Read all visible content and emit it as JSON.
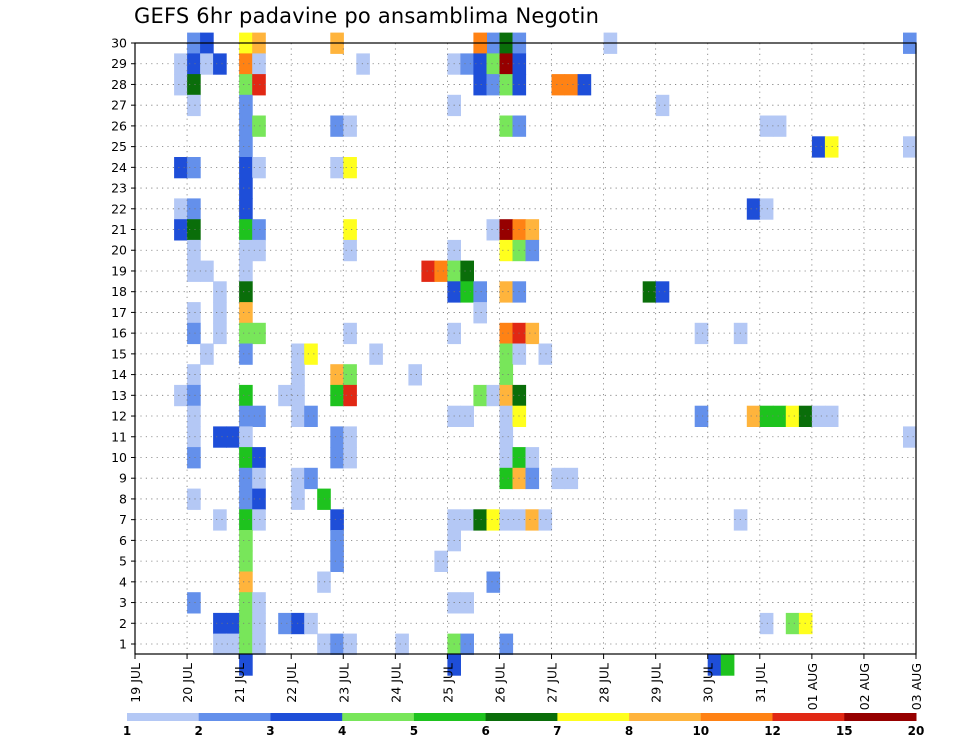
{
  "chart_data": {
    "type": "heatmap",
    "title": "GEFS 6hr padavine po ansamblima Negotin",
    "xlabel": "",
    "ylabel": "",
    "x_ticks": [
      "19 JUL",
      "20 JUL",
      "21 JUL",
      "22 JUL",
      "23 JUL",
      "24 JUL",
      "25 JUL",
      "26 JUL",
      "27 JUL",
      "28 JUL",
      "29 JUL",
      "30 JUL",
      "31 JUL",
      "01 AUG",
      "02 AUG",
      "03 AUG"
    ],
    "y_ticks": [
      1,
      2,
      3,
      4,
      5,
      6,
      7,
      8,
      9,
      10,
      11,
      12,
      13,
      14,
      15,
      16,
      17,
      18,
      19,
      20,
      21,
      22,
      23,
      24,
      25,
      26,
      27,
      28,
      29,
      30
    ],
    "xlim_days": [
      0,
      15
    ],
    "ylim": [
      0,
      30
    ],
    "grid": true,
    "legend": {
      "position": "bottom",
      "labels": [
        "1",
        "2",
        "3",
        "4",
        "5",
        "6",
        "7",
        "8",
        "10",
        "12",
        "15",
        "20"
      ],
      "colors": [
        "#b4c8f5",
        "#6490eb",
        "#1e4ed8",
        "#78e65a",
        "#1ec31e",
        "#0a6e0a",
        "#ffff1e",
        "#ffb43c",
        "#ff8214",
        "#e12814",
        "#960000"
      ]
    },
    "cells": [
      {
        "m": 30,
        "x": [
          1.0,
          2.0
        ],
        "c": [
          1,
          6
        ]
      },
      {
        "m": 30,
        "x": [
          1.25,
          2.25,
          3.75,
          6.75,
          7.0,
          7.25,
          9.0,
          14.75
        ],
        "c": [
          2,
          7,
          7,
          1,
          5,
          1,
          0,
          1
        ]
      },
      {
        "m": 30,
        "x": [
          6.5
        ],
        "c": [
          8
        ]
      },
      {
        "m": 29,
        "x": [
          0.75,
          1.0,
          1.25,
          1.5,
          2.0,
          2.25,
          4.25,
          6.0,
          6.25,
          6.5,
          6.75,
          7.0,
          7.25
        ],
        "c": [
          0,
          2,
          0,
          2,
          8,
          0,
          0,
          0,
          1,
          2,
          3,
          10,
          2
        ]
      },
      {
        "m": 28,
        "x": [
          0.75,
          1.0,
          2.0,
          2.25,
          6.5,
          6.75,
          7.0,
          7.25,
          8.0,
          8.25,
          8.5
        ],
        "c": [
          0,
          5,
          3,
          9,
          2,
          1,
          3,
          2,
          8,
          8,
          2
        ]
      },
      {
        "m": 27,
        "x": [
          1.0,
          2.0,
          6.0,
          10.0
        ],
        "c": [
          0,
          1,
          0,
          0
        ]
      },
      {
        "m": 26,
        "x": [
          2.0,
          2.25,
          3.75,
          4.0,
          7.0,
          7.25,
          12.0,
          12.25
        ],
        "c": [
          1,
          3,
          1,
          0,
          3,
          1,
          0,
          0
        ]
      },
      {
        "m": 25,
        "x": [
          2.0,
          13.0,
          13.25,
          14.75
        ],
        "c": [
          1,
          2,
          6,
          0
        ]
      },
      {
        "m": 24,
        "x": [
          0.75,
          1.0,
          2.0,
          2.25,
          3.75,
          4.0
        ],
        "c": [
          2,
          1,
          2,
          0,
          0,
          6
        ]
      },
      {
        "m": 23,
        "x": [
          2.0
        ],
        "c": [
          2
        ]
      },
      {
        "m": 22,
        "x": [
          0.75,
          1.0,
          2.0,
          11.75,
          12.0
        ],
        "c": [
          0,
          1,
          2,
          2,
          0
        ]
      },
      {
        "m": 21,
        "x": [
          0.75,
          1.0,
          2.0,
          2.25,
          4.0,
          6.75,
          7.0,
          7.25,
          7.5
        ],
        "c": [
          2,
          5,
          4,
          1,
          6,
          0,
          10,
          8,
          7
        ]
      },
      {
        "m": 20,
        "x": [
          1.0,
          2.0,
          2.25,
          4.0,
          6.0,
          7.0,
          7.25,
          7.5
        ],
        "c": [
          0,
          0,
          0,
          0,
          0,
          6,
          3,
          1
        ]
      },
      {
        "m": 19,
        "x": [
          1.0,
          1.25,
          2.0,
          5.5,
          5.75,
          6.0,
          6.25
        ],
        "c": [
          0,
          0,
          0,
          9,
          8,
          3,
          5
        ]
      },
      {
        "m": 18,
        "x": [
          1.5,
          2.0,
          6.0,
          6.25,
          6.5,
          7.0,
          7.25,
          9.75,
          10.0
        ],
        "c": [
          0,
          5,
          2,
          4,
          1,
          7,
          1,
          5,
          2
        ]
      },
      {
        "m": 17,
        "x": [
          1.0,
          1.5,
          2.0,
          6.5
        ],
        "c": [
          0,
          0,
          7,
          0
        ]
      },
      {
        "m": 16,
        "x": [
          1.0,
          1.5,
          2.0,
          2.25,
          4.0,
          6.0,
          7.0,
          7.25,
          7.5,
          10.75,
          11.5
        ],
        "c": [
          1,
          0,
          3,
          3,
          0,
          0,
          8,
          9,
          7,
          0,
          0
        ]
      },
      {
        "m": 15,
        "x": [
          1.25,
          2.0,
          3.0,
          3.25,
          4.5,
          7.0,
          7.25,
          7.75
        ],
        "c": [
          0,
          1,
          0,
          6,
          0,
          3,
          0,
          0
        ]
      },
      {
        "m": 14,
        "x": [
          1.0,
          3.0,
          3.75,
          4.0,
          5.25,
          7.0
        ],
        "c": [
          0,
          0,
          7,
          3,
          0,
          3
        ]
      },
      {
        "m": 13,
        "x": [
          0.75,
          1.0,
          2.0,
          2.75,
          3.0,
          3.75,
          4.0,
          6.5,
          6.75,
          7.0,
          7.25
        ],
        "c": [
          0,
          1,
          4,
          0,
          0,
          4,
          9,
          3,
          0,
          7,
          5
        ]
      },
      {
        "m": 12,
        "x": [
          1.0,
          2.0,
          2.25,
          3.0,
          3.25,
          6.0,
          6.25,
          7.0,
          7.25,
          10.75,
          11.75,
          12.0,
          12.25,
          12.5,
          12.75,
          13.0,
          13.25
        ],
        "c": [
          0,
          1,
          1,
          0,
          1,
          0,
          0,
          0,
          6,
          1,
          7,
          4,
          4,
          6,
          5,
          0,
          0
        ]
      },
      {
        "m": 11,
        "x": [
          1.0,
          1.5,
          1.75,
          2.0,
          3.75,
          4.0,
          7.0,
          14.75
        ],
        "c": [
          0,
          2,
          2,
          0,
          1,
          0,
          0,
          0
        ]
      },
      {
        "m": 10,
        "x": [
          1.0,
          2.0,
          2.25,
          3.75,
          4.0,
          7.0,
          7.25,
          7.5
        ],
        "c": [
          1,
          4,
          2,
          1,
          0,
          0,
          4,
          0
        ]
      },
      {
        "m": 9,
        "x": [
          2.0,
          2.25,
          3.0,
          3.25,
          7.0,
          7.25,
          7.5,
          8.0,
          8.25
        ],
        "c": [
          1,
          0,
          0,
          1,
          4,
          7,
          1,
          0,
          0
        ]
      },
      {
        "m": 8,
        "x": [
          1.0,
          2.0,
          2.25,
          3.0,
          3.5
        ],
        "c": [
          0,
          1,
          2,
          0,
          4
        ]
      },
      {
        "m": 7,
        "x": [
          1.5,
          2.0,
          2.25,
          3.75,
          6.0,
          6.25,
          6.5,
          6.75,
          7.0,
          7.25,
          7.5,
          7.75,
          11.5
        ],
        "c": [
          0,
          4,
          0,
          2,
          0,
          0,
          5,
          6,
          0,
          0,
          7,
          0,
          0
        ]
      },
      {
        "m": 6,
        "x": [
          2.0,
          3.75,
          6.0
        ],
        "c": [
          3,
          1,
          0
        ]
      },
      {
        "m": 5,
        "x": [
          2.0,
          3.75,
          5.75
        ],
        "c": [
          3,
          1,
          0
        ]
      },
      {
        "m": 4,
        "x": [
          2.0,
          3.5,
          6.75
        ],
        "c": [
          7,
          0,
          1
        ]
      },
      {
        "m": 3,
        "x": [
          1.0,
          2.0,
          2.25,
          6.0,
          6.25
        ],
        "c": [
          1,
          3,
          0,
          0,
          0
        ]
      },
      {
        "m": 2,
        "x": [
          1.5,
          1.75,
          2.0,
          2.25,
          2.75,
          3.0,
          3.25,
          12.0,
          12.5,
          12.75
        ],
        "c": [
          2,
          2,
          3,
          0,
          1,
          2,
          0,
          0,
          3,
          6
        ]
      },
      {
        "m": 1,
        "x": [
          1.5,
          1.75,
          2.0,
          2.25,
          3.5,
          3.75,
          4.0,
          5.0,
          6.0,
          6.25,
          7.0
        ],
        "c": [
          0,
          0,
          3,
          0,
          0,
          1,
          0,
          0,
          3,
          1,
          1
        ]
      },
      {
        "m": 0,
        "x": [
          2.0,
          6.0,
          11.0,
          11.25
        ],
        "c": [
          2,
          2,
          2,
          4
        ]
      }
    ]
  }
}
